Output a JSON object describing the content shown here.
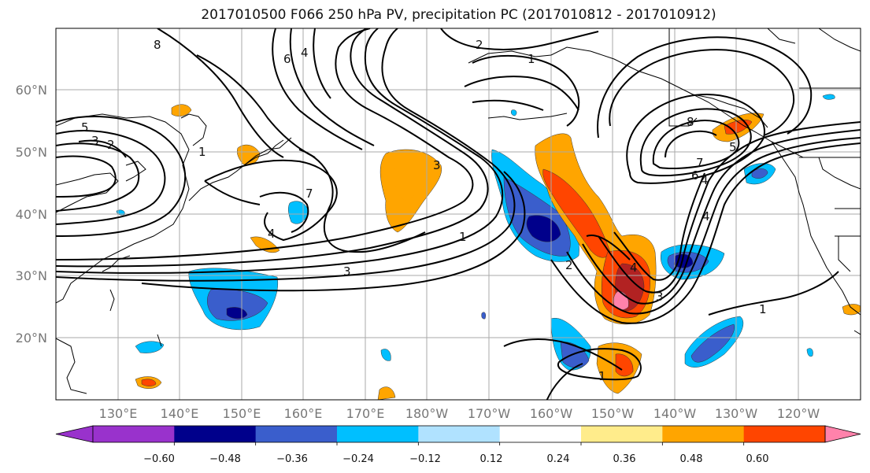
{
  "title": "2017010500 F066 250 hPa PV, precipitation PC (2017010812 - 2017010912)",
  "lat_labels": [
    "60°N",
    "50°N",
    "40°N",
    "30°N",
    "20°N"
  ],
  "lon_labels": [
    "130°E",
    "140°E",
    "150°E",
    "160°E",
    "170°E",
    "180°W",
    "170°W",
    "160°W",
    "150°W",
    "140°W",
    "130°W",
    "120°W"
  ],
  "colorbar": {
    "colors": [
      "#9932CC",
      "#00008B",
      "#3A5ECC",
      "#00BFFF",
      "#B0E2FF",
      "#FFFFFF",
      "#FFEC8B",
      "#FFA500",
      "#FF4500",
      "#B22222",
      "#FF82AB"
    ],
    "tick_labels": [
      "−0.60",
      "−0.48",
      "−0.36",
      "−0.24",
      "−0.12",
      "0.12",
      "0.24",
      "0.36",
      "0.48",
      "0.60"
    ]
  },
  "contour_labels": [
    "8",
    "6",
    "4",
    "5",
    "3",
    "2",
    "1",
    "7",
    "2",
    "1",
    "3",
    "4",
    "3",
    "1",
    "1",
    "8",
    "6",
    "4",
    "5",
    "4",
    "2",
    "7",
    "3",
    "4",
    "1"
  ]
}
